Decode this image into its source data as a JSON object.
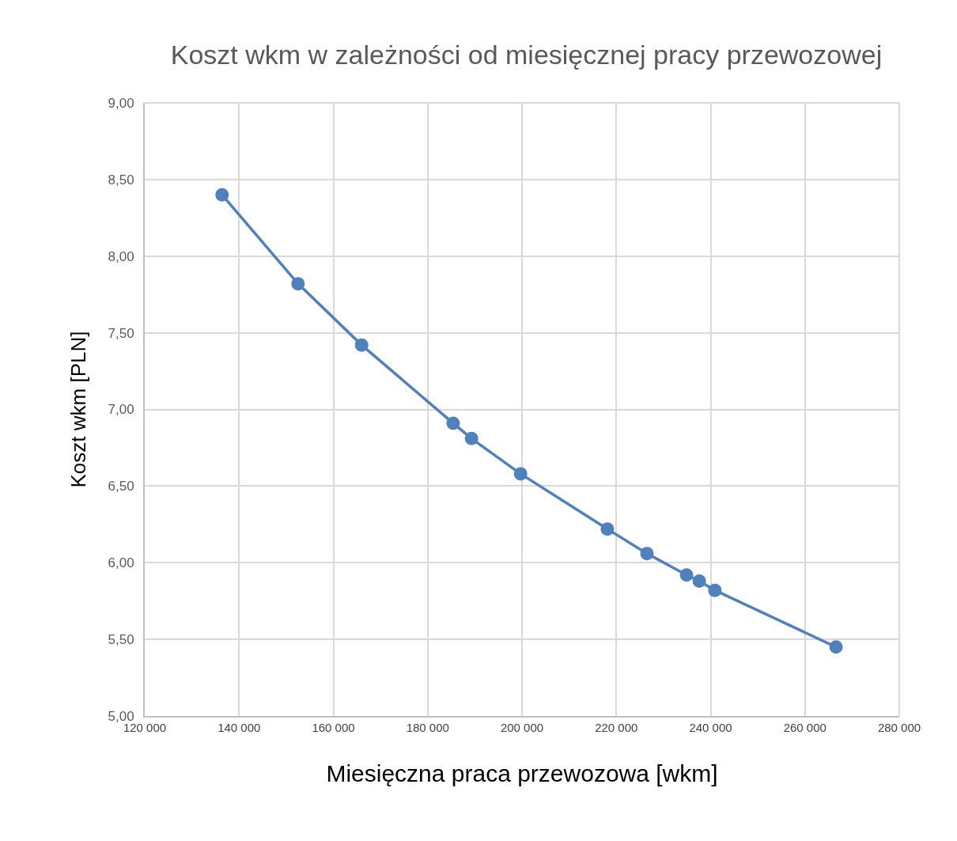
{
  "chart_data": {
    "type": "line",
    "title": "Koszt wkm w zależności od miesięcznej pracy przewozowej",
    "xlabel": "Miesięczna praca przewozowa [wkm]",
    "ylabel": "Koszt wkm [PLN]",
    "x": [
      136400,
      152500,
      166000,
      185400,
      189300,
      199700,
      218100,
      226500,
      234900,
      237600,
      240900,
      266600
    ],
    "series": [
      {
        "color": "#4f81bd",
        "values": [
          8.4,
          7.82,
          7.42,
          6.91,
          6.81,
          6.58,
          6.22,
          6.06,
          5.92,
          5.88,
          5.82,
          5.45
        ]
      }
    ],
    "xlim": [
      120000,
      280000
    ],
    "xticks": [
      {
        "value": 120000,
        "label": "120 000"
      },
      {
        "value": 140000,
        "label": "140 000"
      },
      {
        "value": 160000,
        "label": "160 000"
      },
      {
        "value": 180000,
        "label": "180 000"
      },
      {
        "value": 200000,
        "label": "200 000"
      },
      {
        "value": 220000,
        "label": "220 000"
      },
      {
        "value": 240000,
        "label": "240 000"
      },
      {
        "value": 260000,
        "label": "260 000"
      },
      {
        "value": 280000,
        "label": "280 000"
      }
    ],
    "ylim": [
      5,
      9
    ],
    "yticks": [
      {
        "value": 5,
        "label": "5,00"
      },
      {
        "value": 5.5,
        "label": "5,50"
      },
      {
        "value": 6,
        "label": "6,00"
      },
      {
        "value": 6.5,
        "label": "6,50"
      },
      {
        "value": 7,
        "label": "7,00"
      },
      {
        "value": 7.5,
        "label": "7,50"
      },
      {
        "value": 8,
        "label": "8,00"
      },
      {
        "value": 8.5,
        "label": "8,50"
      },
      {
        "value": 9,
        "label": "9,00"
      }
    ],
    "grid": true,
    "marker": "circle",
    "line_style": "solid"
  }
}
